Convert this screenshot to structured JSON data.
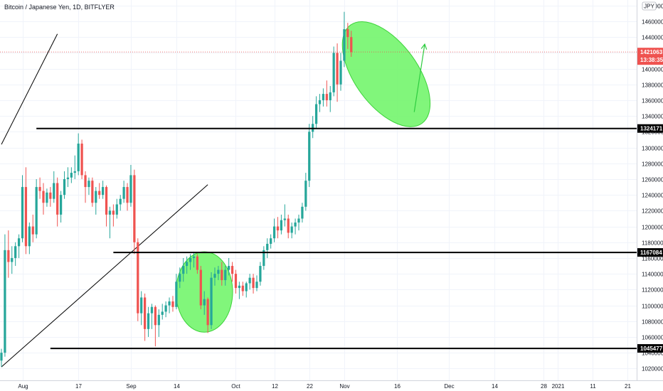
{
  "chart_data": {
    "type": "candlestick",
    "title": "Bitcoin / Japanese Yen, 1D, BITFLYER",
    "currency_label": "JPY",
    "ylim": [
      1005000,
      1487000
    ],
    "yticks": [
      1020000,
      1040000,
      1060000,
      1080000,
      1100000,
      1120000,
      1140000,
      1160000,
      1180000,
      1200000,
      1220000,
      1240000,
      1260000,
      1280000,
      1300000,
      1320000,
      1340000,
      1360000,
      1380000,
      1400000,
      1420000,
      1440000,
      1460000,
      1480000
    ],
    "x_range": [
      "2020-07-26",
      "2021-01-24"
    ],
    "xticks": [
      {
        "date": "2020-08-01",
        "label": "Aug"
      },
      {
        "date": "2020-08-17",
        "label": "17"
      },
      {
        "date": "2020-09-01",
        "label": "Sep"
      },
      {
        "date": "2020-09-14",
        "label": "14"
      },
      {
        "date": "2020-10-01",
        "label": "Oct"
      },
      {
        "date": "2020-10-12",
        "label": "12"
      },
      {
        "date": "2020-10-22",
        "label": "22"
      },
      {
        "date": "2020-11-01",
        "label": "Nov"
      },
      {
        "date": "2020-11-16",
        "label": "16"
      },
      {
        "date": "2020-12-01",
        "label": "Dec"
      },
      {
        "date": "2020-12-14",
        "label": "14"
      },
      {
        "date": "2020-12-28",
        "label": "28"
      },
      {
        "date": "2021-01-01",
        "label": "2021"
      },
      {
        "date": "2021-01-11",
        "label": "11"
      },
      {
        "date": "2021-01-21",
        "label": "21"
      }
    ],
    "colors": {
      "up": "#26a69a",
      "down": "#ef5350",
      "level": "#000000",
      "highlight": "#76f570",
      "arrow": "#2ecc40",
      "price": "#ef5350"
    },
    "current_price": {
      "value": 1421063,
      "label": "1421063",
      "countdown": "13:38:35"
    },
    "levels": [
      {
        "value": 1324171,
        "label": "1324171",
        "from": "2020-08-05"
      },
      {
        "value": 1167084,
        "label": "1167084",
        "from": "2020-08-27"
      },
      {
        "value": 1045477,
        "label": "1045477",
        "from": "2020-08-09"
      }
    ],
    "trendlines": [
      {
        "from": [
          "2020-07-26",
          1304000
        ],
        "to": [
          "2020-08-11",
          1444000
        ]
      },
      {
        "from": [
          "2020-07-26",
          1022000
        ],
        "to": [
          "2020-09-23",
          1253000
        ]
      }
    ],
    "highlights": [
      {
        "center": [
          "2020-09-22",
          1117000
        ],
        "rx_days": 8.1,
        "ry_value": 51000
      },
      {
        "center": [
          "2020-11-13",
          1393000
        ],
        "rx_days": 9.0,
        "ry_value": 77000,
        "rotate_deg": -36
      }
    ],
    "arrow": {
      "from": [
        "2020-11-21",
        1345000
      ],
      "to": [
        "2020-11-24",
        1431000
      ]
    },
    "candles": [
      {
        "date": "2020-07-26",
        "o": 1030000,
        "h": 1045000,
        "l": 1022000,
        "c": 1040000
      },
      {
        "date": "2020-07-27",
        "o": 1040000,
        "h": 1190000,
        "l": 1035000,
        "c": 1170000
      },
      {
        "date": "2020-07-28",
        "o": 1170000,
        "h": 1195000,
        "l": 1135000,
        "c": 1155000
      },
      {
        "date": "2020-07-29",
        "o": 1155000,
        "h": 1175000,
        "l": 1140000,
        "c": 1160000
      },
      {
        "date": "2020-07-30",
        "o": 1160000,
        "h": 1180000,
        "l": 1150000,
        "c": 1175000
      },
      {
        "date": "2020-07-31",
        "o": 1175000,
        "h": 1190000,
        "l": 1160000,
        "c": 1185000
      },
      {
        "date": "2020-08-01",
        "o": 1185000,
        "h": 1265000,
        "l": 1180000,
        "c": 1250000
      },
      {
        "date": "2020-08-02",
        "o": 1250000,
        "h": 1275000,
        "l": 1165000,
        "c": 1175000
      },
      {
        "date": "2020-08-03",
        "o": 1175000,
        "h": 1205000,
        "l": 1165000,
        "c": 1200000
      },
      {
        "date": "2020-08-04",
        "o": 1200000,
        "h": 1215000,
        "l": 1180000,
        "c": 1190000
      },
      {
        "date": "2020-08-05",
        "o": 1190000,
        "h": 1260000,
        "l": 1185000,
        "c": 1250000
      },
      {
        "date": "2020-08-06",
        "o": 1250000,
        "h": 1262000,
        "l": 1235000,
        "c": 1245000
      },
      {
        "date": "2020-08-07",
        "o": 1245000,
        "h": 1255000,
        "l": 1215000,
        "c": 1230000
      },
      {
        "date": "2020-08-08",
        "o": 1230000,
        "h": 1248000,
        "l": 1225000,
        "c": 1243000
      },
      {
        "date": "2020-08-09",
        "o": 1243000,
        "h": 1250000,
        "l": 1225000,
        "c": 1235000
      },
      {
        "date": "2020-08-10",
        "o": 1235000,
        "h": 1270000,
        "l": 1230000,
        "c": 1255000
      },
      {
        "date": "2020-08-11",
        "o": 1255000,
        "h": 1262000,
        "l": 1200000,
        "c": 1215000
      },
      {
        "date": "2020-08-12",
        "o": 1215000,
        "h": 1245000,
        "l": 1205000,
        "c": 1240000
      },
      {
        "date": "2020-08-13",
        "o": 1240000,
        "h": 1270000,
        "l": 1235000,
        "c": 1260000
      },
      {
        "date": "2020-08-14",
        "o": 1260000,
        "h": 1275000,
        "l": 1250000,
        "c": 1262000
      },
      {
        "date": "2020-08-15",
        "o": 1262000,
        "h": 1275000,
        "l": 1255000,
        "c": 1268000
      },
      {
        "date": "2020-08-16",
        "o": 1268000,
        "h": 1290000,
        "l": 1260000,
        "c": 1270000
      },
      {
        "date": "2020-08-17",
        "o": 1270000,
        "h": 1318000,
        "l": 1265000,
        "c": 1305000
      },
      {
        "date": "2020-08-18",
        "o": 1305000,
        "h": 1310000,
        "l": 1260000,
        "c": 1265000
      },
      {
        "date": "2020-08-19",
        "o": 1265000,
        "h": 1270000,
        "l": 1230000,
        "c": 1250000
      },
      {
        "date": "2020-08-20",
        "o": 1250000,
        "h": 1262000,
        "l": 1240000,
        "c": 1258000
      },
      {
        "date": "2020-08-21",
        "o": 1258000,
        "h": 1262000,
        "l": 1225000,
        "c": 1230000
      },
      {
        "date": "2020-08-22",
        "o": 1230000,
        "h": 1250000,
        "l": 1215000,
        "c": 1245000
      },
      {
        "date": "2020-08-23",
        "o": 1245000,
        "h": 1255000,
        "l": 1235000,
        "c": 1240000
      },
      {
        "date": "2020-08-24",
        "o": 1240000,
        "h": 1258000,
        "l": 1235000,
        "c": 1250000
      },
      {
        "date": "2020-08-25",
        "o": 1250000,
        "h": 1252000,
        "l": 1200000,
        "c": 1215000
      },
      {
        "date": "2020-08-26",
        "o": 1215000,
        "h": 1225000,
        "l": 1185000,
        "c": 1220000
      },
      {
        "date": "2020-08-27",
        "o": 1220000,
        "h": 1228000,
        "l": 1200000,
        "c": 1215000
      },
      {
        "date": "2020-08-28",
        "o": 1215000,
        "h": 1235000,
        "l": 1210000,
        "c": 1228000
      },
      {
        "date": "2020-08-29",
        "o": 1228000,
        "h": 1240000,
        "l": 1220000,
        "c": 1235000
      },
      {
        "date": "2020-08-30",
        "o": 1235000,
        "h": 1258000,
        "l": 1230000,
        "c": 1250000
      },
      {
        "date": "2020-08-31",
        "o": 1250000,
        "h": 1255000,
        "l": 1220000,
        "c": 1230000
      },
      {
        "date": "2020-09-01",
        "o": 1230000,
        "h": 1278000,
        "l": 1225000,
        "c": 1265000
      },
      {
        "date": "2020-09-02",
        "o": 1265000,
        "h": 1272000,
        "l": 1165000,
        "c": 1180000
      },
      {
        "date": "2020-09-03",
        "o": 1180000,
        "h": 1185000,
        "l": 1080000,
        "c": 1090000
      },
      {
        "date": "2020-09-04",
        "o": 1090000,
        "h": 1118000,
        "l": 1075000,
        "c": 1110000
      },
      {
        "date": "2020-09-05",
        "o": 1110000,
        "h": 1115000,
        "l": 1055000,
        "c": 1070000
      },
      {
        "date": "2020-09-06",
        "o": 1070000,
        "h": 1098000,
        "l": 1060000,
        "c": 1090000
      },
      {
        "date": "2020-09-07",
        "o": 1090000,
        "h": 1102000,
        "l": 1070000,
        "c": 1098000
      },
      {
        "date": "2020-09-08",
        "o": 1098000,
        "h": 1100000,
        "l": 1048000,
        "c": 1075000
      },
      {
        "date": "2020-09-09",
        "o": 1075000,
        "h": 1095000,
        "l": 1060000,
        "c": 1088000
      },
      {
        "date": "2020-09-10",
        "o": 1088000,
        "h": 1102000,
        "l": 1082000,
        "c": 1092000
      },
      {
        "date": "2020-09-11",
        "o": 1092000,
        "h": 1105000,
        "l": 1085000,
        "c": 1100000
      },
      {
        "date": "2020-09-12",
        "o": 1100000,
        "h": 1110000,
        "l": 1090000,
        "c": 1105000
      },
      {
        "date": "2020-09-13",
        "o": 1105000,
        "h": 1112000,
        "l": 1092000,
        "c": 1098000
      },
      {
        "date": "2020-09-14",
        "o": 1098000,
        "h": 1140000,
        "l": 1095000,
        "c": 1130000
      },
      {
        "date": "2020-09-15",
        "o": 1130000,
        "h": 1148000,
        "l": 1122000,
        "c": 1140000
      },
      {
        "date": "2020-09-16",
        "o": 1140000,
        "h": 1160000,
        "l": 1130000,
        "c": 1150000
      },
      {
        "date": "2020-09-17",
        "o": 1150000,
        "h": 1162000,
        "l": 1140000,
        "c": 1155000
      },
      {
        "date": "2020-09-18",
        "o": 1155000,
        "h": 1165000,
        "l": 1145000,
        "c": 1160000
      },
      {
        "date": "2020-09-19",
        "o": 1160000,
        "h": 1168000,
        "l": 1148000,
        "c": 1162000
      },
      {
        "date": "2020-09-20",
        "o": 1162000,
        "h": 1165000,
        "l": 1140000,
        "c": 1145000
      },
      {
        "date": "2020-09-21",
        "o": 1145000,
        "h": 1150000,
        "l": 1095000,
        "c": 1100000
      },
      {
        "date": "2020-09-22",
        "o": 1100000,
        "h": 1118000,
        "l": 1088000,
        "c": 1108000
      },
      {
        "date": "2020-09-23",
        "o": 1108000,
        "h": 1110000,
        "l": 1065000,
        "c": 1075000
      },
      {
        "date": "2020-09-24",
        "o": 1075000,
        "h": 1142000,
        "l": 1070000,
        "c": 1135000
      },
      {
        "date": "2020-09-25",
        "o": 1135000,
        "h": 1148000,
        "l": 1125000,
        "c": 1140000
      },
      {
        "date": "2020-09-26",
        "o": 1140000,
        "h": 1150000,
        "l": 1132000,
        "c": 1145000
      },
      {
        "date": "2020-09-27",
        "o": 1145000,
        "h": 1155000,
        "l": 1125000,
        "c": 1132000
      },
      {
        "date": "2020-09-28",
        "o": 1132000,
        "h": 1150000,
        "l": 1125000,
        "c": 1145000
      },
      {
        "date": "2020-09-29",
        "o": 1145000,
        "h": 1160000,
        "l": 1138000,
        "c": 1150000
      },
      {
        "date": "2020-09-30",
        "o": 1150000,
        "h": 1155000,
        "l": 1130000,
        "c": 1140000
      },
      {
        "date": "2020-10-01",
        "o": 1140000,
        "h": 1145000,
        "l": 1115000,
        "c": 1122000
      },
      {
        "date": "2020-10-02",
        "o": 1122000,
        "h": 1130000,
        "l": 1108000,
        "c": 1125000
      },
      {
        "date": "2020-10-03",
        "o": 1125000,
        "h": 1130000,
        "l": 1112000,
        "c": 1118000
      },
      {
        "date": "2020-10-04",
        "o": 1118000,
        "h": 1130000,
        "l": 1110000,
        "c": 1128000
      },
      {
        "date": "2020-10-05",
        "o": 1128000,
        "h": 1140000,
        "l": 1120000,
        "c": 1135000
      },
      {
        "date": "2020-10-06",
        "o": 1135000,
        "h": 1140000,
        "l": 1115000,
        "c": 1122000
      },
      {
        "date": "2020-10-07",
        "o": 1122000,
        "h": 1138000,
        "l": 1118000,
        "c": 1130000
      },
      {
        "date": "2020-10-08",
        "o": 1130000,
        "h": 1155000,
        "l": 1125000,
        "c": 1150000
      },
      {
        "date": "2020-10-09",
        "o": 1150000,
        "h": 1175000,
        "l": 1145000,
        "c": 1170000
      },
      {
        "date": "2020-10-10",
        "o": 1170000,
        "h": 1185000,
        "l": 1160000,
        "c": 1178000
      },
      {
        "date": "2020-10-11",
        "o": 1178000,
        "h": 1190000,
        "l": 1172000,
        "c": 1185000
      },
      {
        "date": "2020-10-12",
        "o": 1185000,
        "h": 1210000,
        "l": 1180000,
        "c": 1200000
      },
      {
        "date": "2020-10-13",
        "o": 1200000,
        "h": 1212000,
        "l": 1185000,
        "c": 1195000
      },
      {
        "date": "2020-10-14",
        "o": 1195000,
        "h": 1215000,
        "l": 1190000,
        "c": 1208000
      },
      {
        "date": "2020-10-15",
        "o": 1208000,
        "h": 1228000,
        "l": 1200000,
        "c": 1210000
      },
      {
        "date": "2020-10-16",
        "o": 1210000,
        "h": 1215000,
        "l": 1185000,
        "c": 1192000
      },
      {
        "date": "2020-10-17",
        "o": 1192000,
        "h": 1205000,
        "l": 1185000,
        "c": 1200000
      },
      {
        "date": "2020-10-18",
        "o": 1200000,
        "h": 1210000,
        "l": 1190000,
        "c": 1205000
      },
      {
        "date": "2020-10-19",
        "o": 1205000,
        "h": 1215000,
        "l": 1195000,
        "c": 1210000
      },
      {
        "date": "2020-10-20",
        "o": 1210000,
        "h": 1230000,
        "l": 1205000,
        "c": 1225000
      },
      {
        "date": "2020-10-21",
        "o": 1225000,
        "h": 1268000,
        "l": 1220000,
        "c": 1258000
      },
      {
        "date": "2020-10-22",
        "o": 1258000,
        "h": 1330000,
        "l": 1250000,
        "c": 1320000
      },
      {
        "date": "2020-10-23",
        "o": 1320000,
        "h": 1340000,
        "l": 1312000,
        "c": 1330000
      },
      {
        "date": "2020-10-24",
        "o": 1330000,
        "h": 1365000,
        "l": 1325000,
        "c": 1355000
      },
      {
        "date": "2020-10-25",
        "o": 1355000,
        "h": 1368000,
        "l": 1345000,
        "c": 1360000
      },
      {
        "date": "2020-10-26",
        "o": 1360000,
        "h": 1375000,
        "l": 1352000,
        "c": 1368000
      },
      {
        "date": "2020-10-27",
        "o": 1368000,
        "h": 1385000,
        "l": 1352000,
        "c": 1360000
      },
      {
        "date": "2020-10-28",
        "o": 1360000,
        "h": 1378000,
        "l": 1345000,
        "c": 1370000
      },
      {
        "date": "2020-10-29",
        "o": 1370000,
        "h": 1428000,
        "l": 1365000,
        "c": 1420000
      },
      {
        "date": "2020-10-30",
        "o": 1420000,
        "h": 1432000,
        "l": 1358000,
        "c": 1380000
      },
      {
        "date": "2020-10-31",
        "o": 1380000,
        "h": 1420000,
        "l": 1372000,
        "c": 1410000
      },
      {
        "date": "2020-11-01",
        "o": 1410000,
        "h": 1472000,
        "l": 1402000,
        "c": 1450000
      },
      {
        "date": "2020-11-02",
        "o": 1450000,
        "h": 1458000,
        "l": 1425000,
        "c": 1440000
      },
      {
        "date": "2020-11-03",
        "o": 1440000,
        "h": 1448000,
        "l": 1415000,
        "c": 1421063
      }
    ]
  }
}
